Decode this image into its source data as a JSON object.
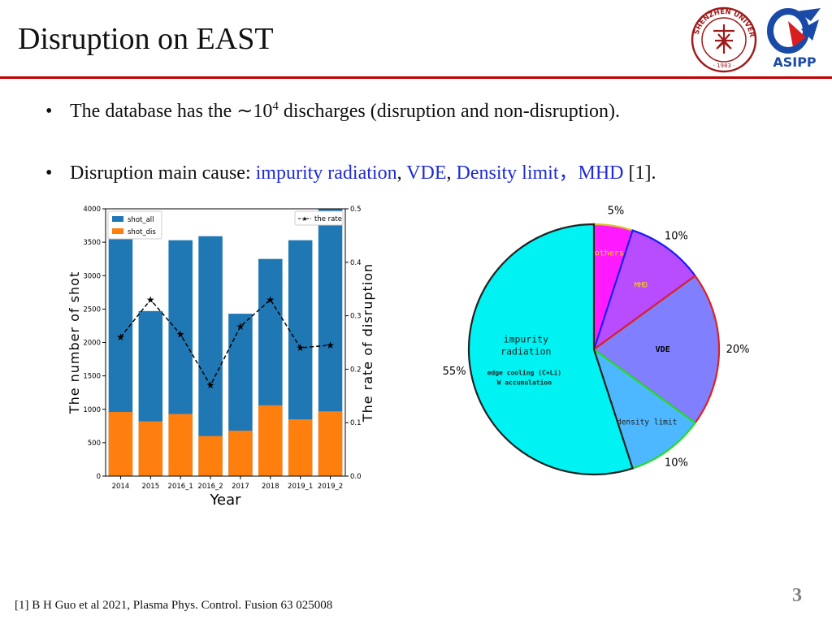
{
  "slide": {
    "title": "Disruption on EAST",
    "page_number": "3",
    "footnote": "[1] B H Guo et al 2021, Plasma Phys. Control. Fusion 63 025008",
    "logo_right_text": "ASIPP",
    "logo_left_text": "SHENZHEN UNIVERSITY",
    "logo_left_year": "· 1983 ·",
    "colors": {
      "rule": "#c00000",
      "cause": "#1f2bd6"
    }
  },
  "bullets": [
    {
      "symbol": "•",
      "prefix": "The database has the ∼10",
      "sup": "4",
      "suffix": " discharges (disruption and non-disruption)."
    },
    {
      "symbol": "•",
      "prefix": "Disruption main cause: ",
      "cause1": "impurity radiation",
      "sep1": ", ",
      "cause2": "VDE",
      "sep2": ", ",
      "cause3": "Density limit，",
      "cause4": "MHD",
      "suffix": " [1]."
    }
  ],
  "chart_data": [
    {
      "type": "bar",
      "categories": [
        "2014",
        "2015",
        "2016_1",
        "2016_2",
        "2017",
        "2018",
        "2019_1",
        "2019_2"
      ],
      "series": [
        {
          "name": "shot_all",
          "values": [
            3700,
            2470,
            3530,
            3590,
            2430,
            3250,
            3530,
            4000
          ],
          "color": "#1f77b4"
        },
        {
          "name": "shot_dis",
          "values": [
            960,
            820,
            930,
            600,
            680,
            1060,
            850,
            970
          ],
          "color": "#ff7f0e"
        },
        {
          "name": "the rate",
          "axis": "right",
          "style": "dashed-star",
          "values": [
            0.26,
            0.33,
            0.265,
            0.17,
            0.28,
            0.33,
            0.24,
            0.245
          ],
          "color": "#000000"
        }
      ],
      "xlabel": "Year",
      "ylabel": "The number of shot",
      "y2label": "The rate of disruption",
      "ylim": [
        0,
        4000
      ],
      "y2lim": [
        0,
        0.5
      ],
      "yticks": [
        "0",
        "500",
        "1000",
        "1500",
        "2000",
        "2500",
        "3000",
        "3500",
        "4000"
      ],
      "y2ticks": [
        "0.0",
        "0.1",
        "0.2",
        "0.3",
        "0.4",
        "0.5"
      ],
      "legend_left": "top-left",
      "legend_right": "top-right",
      "grid": false
    },
    {
      "type": "pie",
      "slices": [
        {
          "label": "others",
          "percent": 5,
          "value_label": "5%",
          "color": "#ff1aff",
          "edge": "#e0c020"
        },
        {
          "label": "MHD",
          "percent": 10,
          "value_label": "10%",
          "color": "#b84dff",
          "edge": "#1a1aff"
        },
        {
          "label": "VDE",
          "percent": 20,
          "value_label": "20%",
          "color": "#8080ff",
          "edge": "#e02020"
        },
        {
          "label": "density limit",
          "percent": 10,
          "value_label": "10%",
          "color": "#4db8ff",
          "edge": "#22dd22"
        },
        {
          "label": "impurity radiation",
          "percent": 55,
          "value_label": "55%",
          "color": "#00f2f2",
          "edge": "#222222",
          "sublabels": [
            "edge cooling (C+Li)",
            "W accumulation"
          ]
        }
      ],
      "label_colors": {
        "others": "#ffd700",
        "MHD": "#ffd700",
        "VDE": "#000000",
        "density limit": "#222222",
        "impurity radiation": "#222222"
      }
    }
  ]
}
